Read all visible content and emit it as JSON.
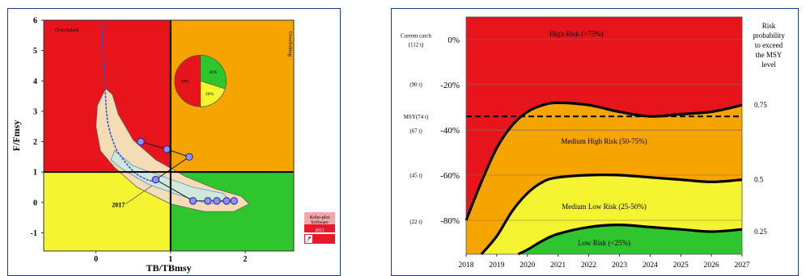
{
  "chart_data": [
    {
      "type": "scatter",
      "xlabel": "TB/TBmsy",
      "ylabel": "F/Fmsy",
      "xlim": [
        -0.7,
        2.65
      ],
      "ylim": [
        -1.6,
        6.0
      ],
      "x_ticks": [
        "0",
        "1",
        "2"
      ],
      "y_ticks": [
        "-1",
        "0",
        "1",
        "2",
        "3",
        "4",
        "5",
        "6"
      ],
      "quadrant_labels": {
        "top_left": "Overfished",
        "top_right": "Overfishing"
      },
      "year_label": "2017",
      "trajectory": {
        "x": [
          0.08,
          0.09,
          0.1,
          0.11,
          0.12,
          0.13,
          0.14,
          0.16,
          0.19,
          0.23,
          0.28,
          0.34,
          0.4,
          0.47,
          0.53,
          0.6,
          0.68,
          0.75
        ],
        "y": [
          5.9,
          5.2,
          4.8,
          4.4,
          3.9,
          3.4,
          3.0,
          2.6,
          2.3,
          2.0,
          1.7,
          1.5,
          1.3,
          1.1,
          0.95,
          0.85,
          0.75,
          0.7
        ]
      },
      "points": {
        "x": [
          0.6,
          0.95,
          1.25,
          0.8,
          1.3,
          1.5,
          1.62,
          1.75,
          1.85
        ],
        "y": [
          2.0,
          1.75,
          1.5,
          0.75,
          0.05,
          0.05,
          0.05,
          0.05,
          0.05
        ]
      },
      "pie": {
        "slices": [
          {
            "percent": 50,
            "color": "#e8141c",
            "label": "50%"
          },
          {
            "percent": 30,
            "color": "#2fc52f",
            "label": "30%"
          },
          {
            "percent": 20,
            "color": "#f4f430",
            "label": "20%"
          }
        ]
      },
      "logo": {
        "line1": "Kobe-plot",
        "line2": "Software",
        "line3": "2011"
      },
      "colors": {
        "red": "#e8141c",
        "orange": "#f6a500",
        "yellow": "#f4f430",
        "green": "#2fc52f"
      }
    },
    {
      "type": "area",
      "x_ticks": [
        "2018",
        "2019",
        "2020",
        "2021",
        "2022",
        "2023",
        "2024",
        "2025",
        "2026",
        "2027"
      ],
      "xlim": [
        2018,
        2027
      ],
      "y_ticks": [
        {
          "label": "0%",
          "value": 0
        },
        {
          "label": "-20%",
          "value": -20
        },
        {
          "label": "-40%",
          "value": -40
        },
        {
          "label": "-60%",
          "value": -60
        },
        {
          "label": "-80%",
          "value": -80
        }
      ],
      "ylim": [
        -95,
        10
      ],
      "catch_labels": [
        {
          "label": "Current catch",
          "value": 2
        },
        {
          "label": "(112 t)",
          "value": -2
        },
        {
          "label": "(90 t)",
          "value": -19.6
        },
        {
          "label": "MSY(74 t)",
          "value": -33.9
        },
        {
          "label": "(67 t)",
          "value": -40.2
        },
        {
          "label": "(45 t)",
          "value": -59.8
        },
        {
          "label": "(22 t)",
          "value": -80.4
        }
      ],
      "msy_line": -34,
      "regions": [
        {
          "label": "High Risk (>75%)",
          "color": "#e8141c"
        },
        {
          "label": "Medium High Risk (50-75%)",
          "color": "#f6a500"
        },
        {
          "label": "Medium Low Risk (25-50%)",
          "color": "#f4f430"
        },
        {
          "label": "Low Risk (<25%)",
          "color": "#2fc52f"
        }
      ],
      "boundaries": [
        {
          "level": "0.75",
          "x": [
            2018,
            2018.5,
            2019,
            2019.5,
            2020,
            2020.5,
            2021,
            2022,
            2023,
            2024,
            2025,
            2026,
            2027
          ],
          "y": [
            -80,
            -63,
            -48,
            -38,
            -32,
            -29,
            -28,
            -29,
            -32,
            -34,
            -33,
            -32,
            -29
          ]
        },
        {
          "level": "0.5",
          "x": [
            2018.5,
            2019,
            2019.5,
            2020,
            2020.5,
            2021,
            2022,
            2023,
            2024,
            2025,
            2026,
            2027
          ],
          "y": [
            -95,
            -87,
            -76,
            -68,
            -63,
            -61,
            -60,
            -60,
            -61,
            -62,
            -63,
            -62
          ]
        },
        {
          "level": "0.25",
          "x": [
            2019.7,
            2020,
            2020.5,
            2021,
            2022,
            2023,
            2024,
            2025,
            2026,
            2027
          ],
          "y": [
            -95,
            -93,
            -89,
            -86,
            -83,
            -82,
            -83,
            -84,
            -85,
            -84
          ]
        }
      ],
      "right_title": [
        "Risk",
        "probability",
        "to exceed",
        "the MSY",
        "level"
      ],
      "level_labels": [
        {
          "label": "0.75",
          "value": -29
        },
        {
          "label": "0.5",
          "value": -62
        },
        {
          "label": "0.25",
          "value": -85
        }
      ]
    }
  ]
}
